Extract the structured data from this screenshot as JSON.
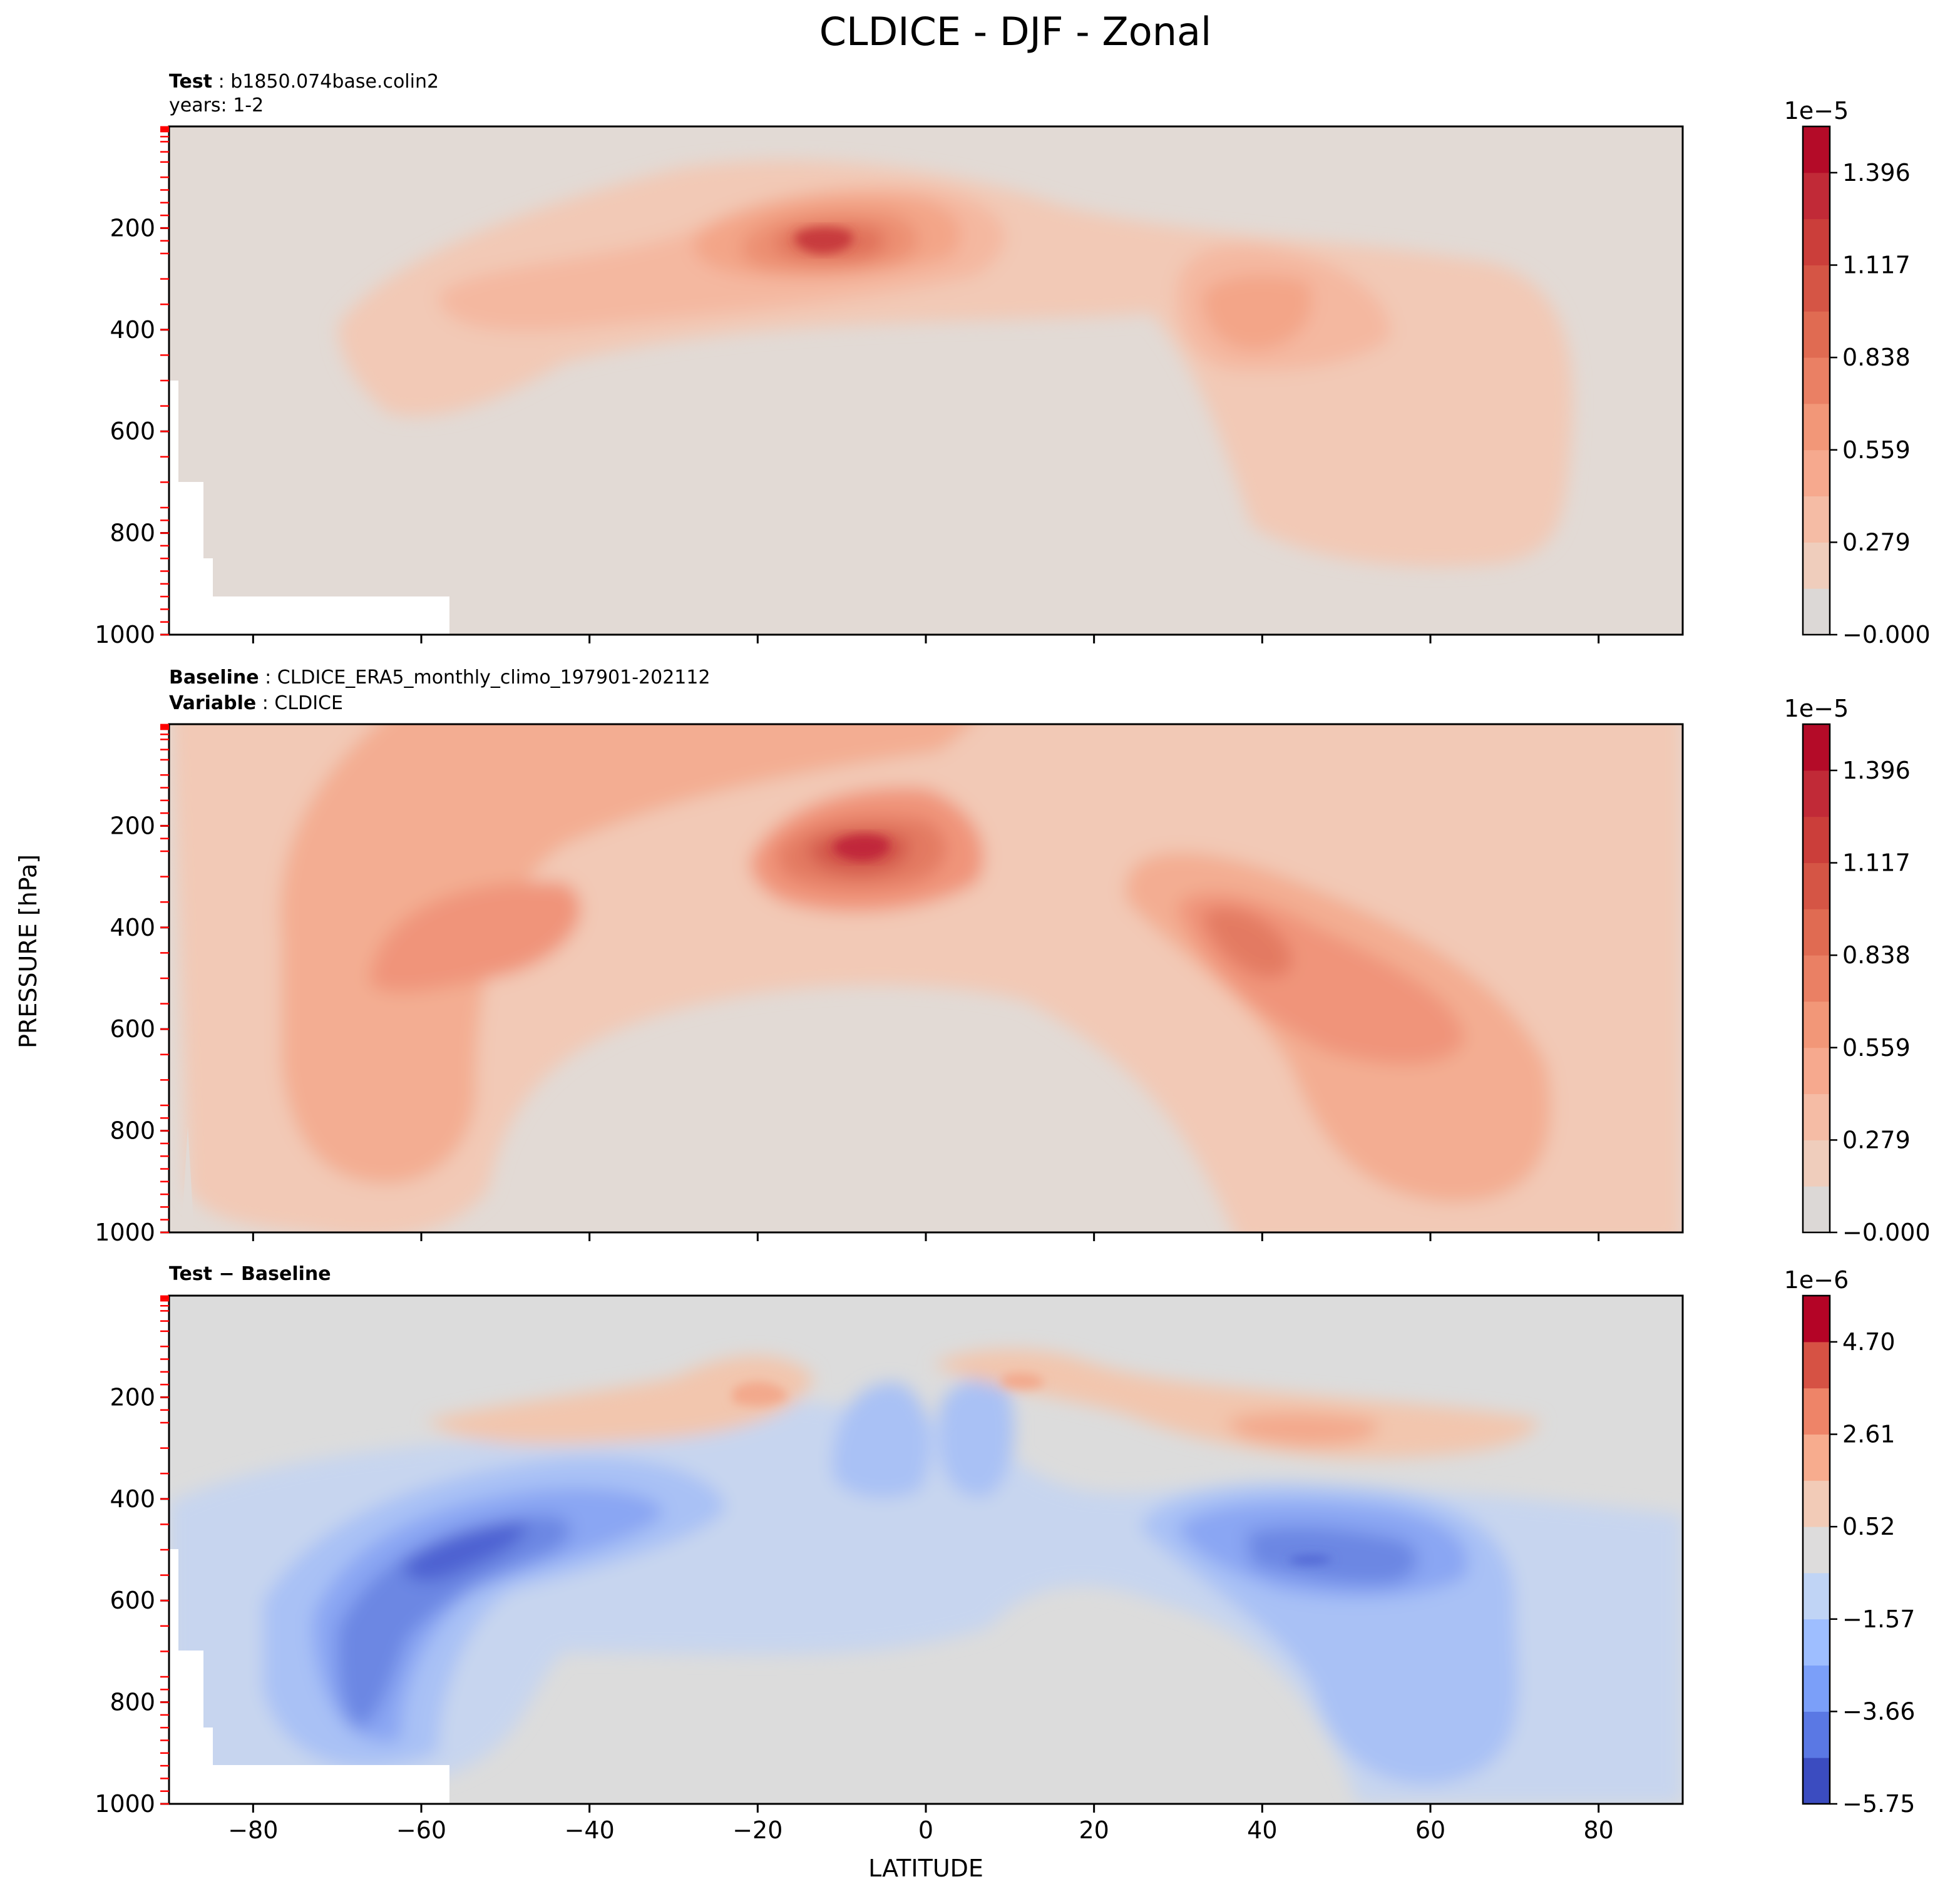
{
  "chart_data": {
    "type": "contour",
    "title": "CLDICE - DJF - Zonal",
    "xlabel": "LATITUDE",
    "ylabel": "PRESSURE [hPa]",
    "xlim": [
      -90,
      90
    ],
    "ylim": [
      1000,
      0
    ],
    "x_ticks": [
      "−80",
      "−60",
      "−40",
      "−20",
      "0",
      "20",
      "40",
      "60",
      "80"
    ],
    "y_ticks": [
      "200",
      "400",
      "600",
      "800",
      "1000"
    ],
    "panels": [
      {
        "id": "test",
        "title_lines": [
          {
            "bold": "Test",
            "text": " : b1850.074base.colin2"
          },
          {
            "bold": "",
            "text": "years: 1-2"
          }
        ],
        "colormap": "coolwarm (upper half)",
        "colorbar": {
          "multiplier": "1e−5",
          "ticks": [
            "−0.000",
            "0.279",
            "0.559",
            "0.838",
            "1.117",
            "1.396"
          ],
          "min": 0,
          "max": 1.55,
          "levels": 11
        },
        "features": [
          {
            "label": "tropical upper-tropospheric maximum",
            "lat": -8,
            "plev": 230,
            "value": 1.3
          },
          {
            "label": "NH mid-latitude maximum",
            "lat": 42,
            "plev": 350,
            "value": 0.65
          },
          {
            "label": "SH mid-latitude band",
            "lat": -50,
            "plev": 320,
            "value": 0.4
          }
        ]
      },
      {
        "id": "baseline",
        "title_lines": [
          {
            "bold": "Baseline",
            "text": " : CLDICE_ERA5_monthly_climo_197901-202112"
          },
          {
            "bold": "Variable",
            "text": " : CLDICE"
          }
        ],
        "colormap": "coolwarm (upper half)",
        "colorbar": {
          "multiplier": "1e−5",
          "ticks": [
            "−0.000",
            "0.279",
            "0.559",
            "0.838",
            "1.117",
            "1.396"
          ],
          "min": 0,
          "max": 1.55,
          "levels": 11
        },
        "features": [
          {
            "label": "tropical upper-tropospheric maximum",
            "lat": -8,
            "plev": 230,
            "value": 1.45
          },
          {
            "label": "NH mid-latitude maximum",
            "lat": 45,
            "plev": 460,
            "value": 0.9
          },
          {
            "label": "SH mid-latitude maximum",
            "lat": -55,
            "plev": 480,
            "value": 0.75
          }
        ]
      },
      {
        "id": "difference",
        "title_lines": [
          {
            "bold": "Test − Baseline",
            "text": ""
          }
        ],
        "colormap": "coolwarm",
        "colorbar": {
          "multiplier": "1e−6",
          "ticks": [
            "−5.75",
            "−3.66",
            "−1.57",
            "0.52",
            "2.61",
            "4.70"
          ],
          "min": -5.75,
          "max": 5.75,
          "levels": 11
        },
        "features": [
          {
            "label": "SH negative minimum",
            "lat": -55,
            "plev": 490,
            "value": -5.2
          },
          {
            "label": "NH negative minimum",
            "lat": 45,
            "plev": 500,
            "value": -4.5
          },
          {
            "label": "upper-level positive bands",
            "lat": 10,
            "plev": 170,
            "value": 1.5
          }
        ]
      }
    ]
  }
}
